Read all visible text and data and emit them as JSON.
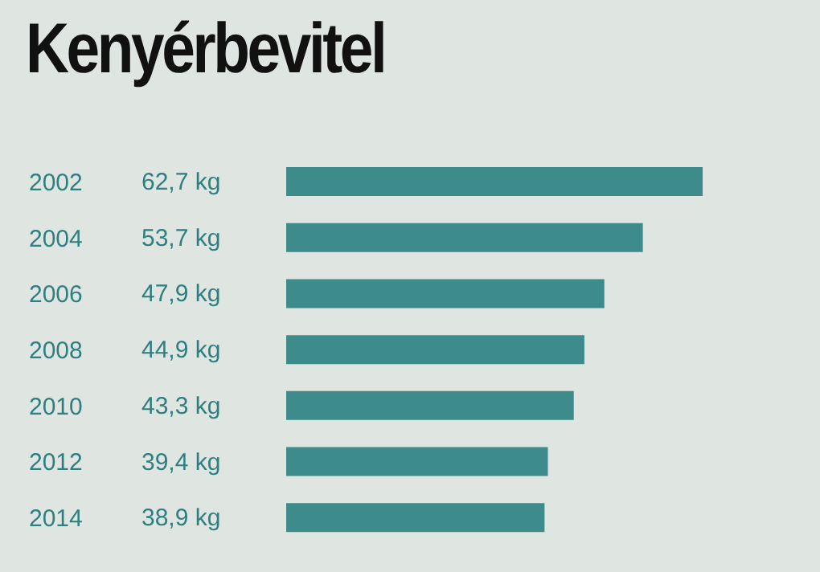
{
  "chart_data": {
    "type": "bar",
    "orientation": "horizontal",
    "title": "Kenyérbevitel",
    "categories": [
      "2002",
      "2004",
      "2006",
      "2008",
      "2010",
      "2012",
      "2014"
    ],
    "values": [
      62.7,
      53.7,
      47.9,
      44.9,
      43.3,
      39.4,
      38.9
    ],
    "value_labels": [
      "62,7 kg",
      "53,7 kg",
      "47,9 kg",
      "44,9 kg",
      "43,3 kg",
      "39,4 kg",
      "38,9 kg"
    ],
    "color": "#3d8b8a"
  }
}
